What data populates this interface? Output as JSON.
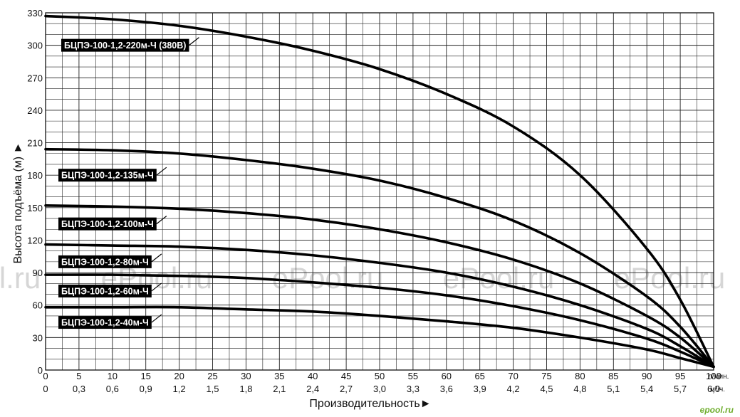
{
  "chart_data": {
    "type": "line",
    "title": "",
    "xlabel": "Производительность►",
    "ylabel": "Высота подъёма (м) ►",
    "xlim": [
      0,
      100
    ],
    "ylim": [
      0,
      330
    ],
    "grid": true,
    "x_ticks_lmin": [
      "0",
      "5",
      "10",
      "15",
      "20",
      "25",
      "30",
      "35",
      "40",
      "45",
      "50",
      "55",
      "60",
      "65",
      "70",
      "75",
      "80",
      "85",
      "90",
      "95",
      "100"
    ],
    "x_ticks_m3h": [
      "0",
      "0,3",
      "0,6",
      "0,9",
      "1,2",
      "1,5",
      "1,8",
      "2,1",
      "2,4",
      "2,7",
      "3,0",
      "3,3",
      "3,6",
      "3,9",
      "4,2",
      "4,5",
      "4,8",
      "5,1",
      "5,4",
      "5,7",
      "6,0"
    ],
    "x_unit_lmin": "л/мин.",
    "x_unit_m3h": "м³/ч.",
    "y_ticks": [
      "0",
      "30",
      "60",
      "90",
      "120",
      "150",
      "180",
      "210",
      "240",
      "270",
      "300",
      "330"
    ],
    "series": [
      {
        "name": "БЦПЭ-100-1,2-220м-Ч (380В)",
        "x": [
          0,
          10,
          20,
          30,
          40,
          50,
          60,
          70,
          80,
          90,
          95,
          100
        ],
        "y": [
          327,
          324,
          318,
          308,
          295,
          278,
          255,
          225,
          180,
          112,
          65,
          3
        ]
      },
      {
        "name": "БЦПЭ-100-1,2-135м-Ч",
        "x": [
          0,
          10,
          20,
          30,
          40,
          50,
          60,
          70,
          80,
          90,
          95,
          100
        ],
        "y": [
          204,
          203,
          200,
          194,
          186,
          175,
          159,
          138,
          108,
          68,
          40,
          3
        ]
      },
      {
        "name": "БЦПЭ-100-1,2-100м-Ч",
        "x": [
          0,
          10,
          20,
          30,
          40,
          50,
          60,
          70,
          80,
          90,
          95,
          100
        ],
        "y": [
          152,
          151,
          149,
          145,
          139,
          130,
          118,
          102,
          80,
          50,
          30,
          3
        ]
      },
      {
        "name": "БЦПЭ-100-1,2-80м-Ч",
        "x": [
          0,
          10,
          20,
          30,
          40,
          50,
          60,
          70,
          80,
          90,
          95,
          100
        ],
        "y": [
          116,
          115,
          114,
          111,
          106,
          99,
          90,
          77,
          60,
          38,
          22,
          3
        ]
      },
      {
        "name": "БЦПЭ-100-1,2-60м-Ч",
        "x": [
          0,
          10,
          20,
          30,
          40,
          50,
          60,
          70,
          80,
          90,
          95,
          100
        ],
        "y": [
          88,
          88,
          87,
          85,
          81,
          76,
          69,
          59,
          46,
          29,
          17,
          3
        ]
      },
      {
        "name": "БЦПЭ-100-1,2-40м-Ч",
        "x": [
          0,
          10,
          20,
          30,
          40,
          50,
          60,
          70,
          80,
          90,
          95,
          100
        ],
        "y": [
          58,
          58,
          58,
          56,
          54,
          50,
          45,
          39,
          30,
          19,
          11,
          3
        ]
      }
    ],
    "labels": [
      {
        "text": "БЦПЭ-100-1,2-220м-Ч (380В)",
        "series": 0,
        "anchor": [
          15,
          300
        ]
      },
      {
        "text": "БЦПЭ-100-1,2-135м-Ч",
        "series": 1,
        "anchor": [
          15,
          180
        ]
      },
      {
        "text": "БЦПЭ-100-1,2-100м-Ч",
        "series": 2,
        "anchor": [
          15,
          135
        ]
      },
      {
        "text": "БЦПЭ-100-1,2-80м-Ч",
        "series": 3,
        "anchor": [
          15,
          100
        ]
      },
      {
        "text": "БЦПЭ-100-1,2-60м-Ч",
        "series": 4,
        "anchor": [
          15,
          73
        ]
      },
      {
        "text": "БЦПЭ-100-1,2-40м-Ч",
        "series": 5,
        "anchor": [
          15,
          44
        ]
      }
    ]
  },
  "watermarks": [
    "l.ru",
    "ePool.ru",
    "ePool.ru",
    "ePool.ru",
    "ePool.ru"
  ],
  "logo": "epool.ru"
}
